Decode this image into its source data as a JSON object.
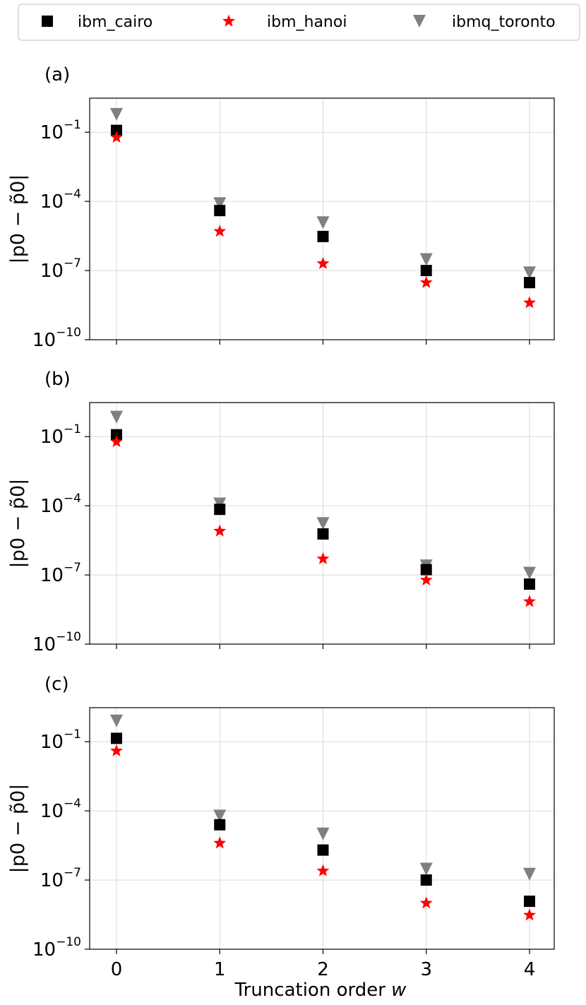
{
  "legend": [
    {
      "label": "ibm_cairo",
      "color": "#000000",
      "marker": "square"
    },
    {
      "label": "ibm_hanoi",
      "color": "#ff0000",
      "marker": "star"
    },
    {
      "label": "ibmq_toronto",
      "color": "#808080",
      "marker": "triangle-down"
    }
  ],
  "xlabel": "Truncation order ",
  "xlabel_var": "w",
  "ylabel": "|p0 − p̃0|",
  "chart_data": [
    {
      "type": "scatter",
      "panel_label": "(a)",
      "x": [
        0,
        1,
        2,
        3,
        4
      ],
      "y_scale": "log",
      "ylim": [
        1e-10,
        3
      ],
      "y_ticks": [
        {
          "base": "10",
          "exp": "−1",
          "value": 0.1
        },
        {
          "base": "10",
          "exp": "−4",
          "value": 0.0001
        },
        {
          "base": "10",
          "exp": "−7",
          "value": 1e-07
        },
        {
          "base": "10",
          "exp": "−10",
          "value": 1e-10
        }
      ],
      "x_ticks_labeled": false,
      "grid": true,
      "series": [
        {
          "name": "ibm_cairo",
          "values": [
            0.12,
            4e-05,
            3e-06,
            1e-07,
            3e-08
          ]
        },
        {
          "name": "ibm_hanoi",
          "values": [
            0.06,
            5e-06,
            2e-07,
            3e-08,
            4e-09
          ]
        },
        {
          "name": "ibmq_toronto",
          "values": [
            0.6,
            8e-05,
            1.2e-05,
            3e-07,
            8e-08
          ]
        }
      ]
    },
    {
      "type": "scatter",
      "panel_label": "(b)",
      "x": [
        0,
        1,
        2,
        3,
        4
      ],
      "y_scale": "log",
      "ylim": [
        1e-10,
        3
      ],
      "y_ticks": [
        {
          "base": "10",
          "exp": "−1",
          "value": 0.1
        },
        {
          "base": "10",
          "exp": "−4",
          "value": 0.0001
        },
        {
          "base": "10",
          "exp": "−7",
          "value": 1e-07
        },
        {
          "base": "10",
          "exp": "−10",
          "value": 1e-10
        }
      ],
      "x_ticks_labeled": false,
      "grid": true,
      "series": [
        {
          "name": "ibm_cairo",
          "values": [
            0.12,
            7e-05,
            6e-06,
            1.7e-07,
            4e-08
          ]
        },
        {
          "name": "ibm_hanoi",
          "values": [
            0.06,
            8e-06,
            5e-07,
            6e-08,
            7e-09
          ]
        },
        {
          "name": "ibmq_toronto",
          "values": [
            0.7,
            0.00012,
            1.7e-05,
            2.5e-07,
            1.2e-07
          ]
        }
      ]
    },
    {
      "type": "scatter",
      "panel_label": "(c)",
      "x": [
        0,
        1,
        2,
        3,
        4
      ],
      "x_ticks": [
        "0",
        "1",
        "2",
        "3",
        "4"
      ],
      "y_scale": "log",
      "ylim": [
        1e-10,
        3
      ],
      "y_ticks": [
        {
          "base": "10",
          "exp": "−1",
          "value": 0.1
        },
        {
          "base": "10",
          "exp": "−4",
          "value": 0.0001
        },
        {
          "base": "10",
          "exp": "−7",
          "value": 1e-07
        },
        {
          "base": "10",
          "exp": "−10",
          "value": 1e-10
        }
      ],
      "x_ticks_labeled": true,
      "grid": true,
      "series": [
        {
          "name": "ibm_cairo",
          "values": [
            0.14,
            2.5e-05,
            2e-06,
            1e-07,
            1.2e-08
          ]
        },
        {
          "name": "ibm_hanoi",
          "values": [
            0.04,
            4e-06,
            2.5e-07,
            1e-08,
            3e-09
          ]
        },
        {
          "name": "ibmq_toronto",
          "values": [
            0.8,
            6e-05,
            1e-05,
            3e-07,
            1.8e-07
          ]
        }
      ]
    }
  ]
}
